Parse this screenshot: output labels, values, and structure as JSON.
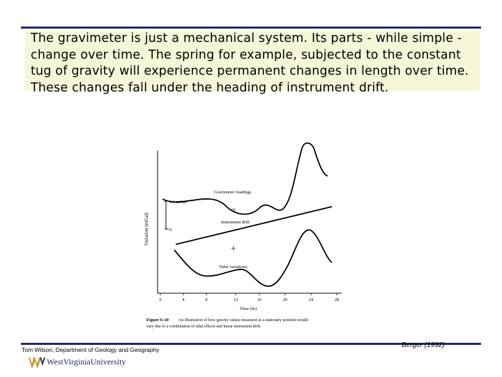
{
  "slide": {
    "body_lines": [
      "The gravimeter is just a mechanical system. Its parts - while simple -",
      "change over time. The spring for example, subjected to the constant",
      "tug of gravity will experience permanent changes in length over time.",
      "These changes fall under the heading of instrument drift."
    ],
    "footer_author": "Tom Wilson, Department of Geology and Geography",
    "citation": "Berger (1992)",
    "logo_text": "WestVirginiaUniversity"
  },
  "figure": {
    "y_axis_label": "Variation (mGal)",
    "x_axis_label": "Time (hr)",
    "x_ticks": [
      "0",
      "4",
      "8",
      "12",
      "16",
      "20",
      "24",
      "28"
    ],
    "scale_label": "0.1 mGal",
    "scale_zero": "0",
    "labels": {
      "gravimeter": "Gravimeter readings",
      "equals": "=",
      "drift": "Instrument drift",
      "plus": "+",
      "tidal": "Tidal variations"
    },
    "caption_number": "Figure 6-10",
    "caption_lines": [
      "An illustration of how gravity values measured at a stationary position would",
      "vary due to a combination of tidal effects and linear instrument drift."
    ]
  }
}
